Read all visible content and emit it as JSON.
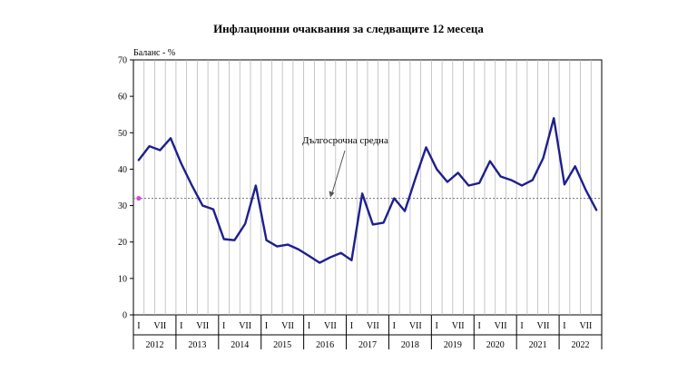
{
  "chart_data": {
    "type": "line",
    "title": "Инфлационни очаквания за следващите 12 месеца",
    "ylabel": "Баланс - %",
    "ylim": [
      0,
      70
    ],
    "yticks": [
      0,
      10,
      20,
      30,
      40,
      50,
      60,
      70
    ],
    "grid": "vertical",
    "quarter_labels": [
      "I",
      "VII"
    ],
    "years": [
      "2012",
      "2013",
      "2014",
      "2015",
      "2016",
      "2017",
      "2018",
      "2019",
      "2020",
      "2021",
      "2022"
    ],
    "series": [
      {
        "color": "#1f1f8f",
        "values": [
          42.5,
          46.3,
          45.2,
          48.5,
          41.5,
          35.5,
          30.0,
          29.0,
          20.8,
          20.5,
          25.0,
          35.5,
          20.5,
          18.8,
          19.3,
          18.0,
          16.2,
          14.3,
          15.8,
          17.0,
          15.0,
          33.3,
          24.8,
          25.3,
          32.0,
          28.5,
          37.5,
          46.0,
          40.0,
          36.5,
          39.0,
          35.5,
          36.2,
          42.2,
          38.0,
          37.0,
          35.5,
          37.0,
          43.0,
          54.0,
          35.8,
          40.8,
          34.3,
          28.8
        ]
      }
    ],
    "reference_line": {
      "label": "Дългосрочна средна",
      "value": 32.0,
      "color": "#808080"
    },
    "marker": {
      "value": 32.0,
      "color": "#e040e0"
    }
  }
}
